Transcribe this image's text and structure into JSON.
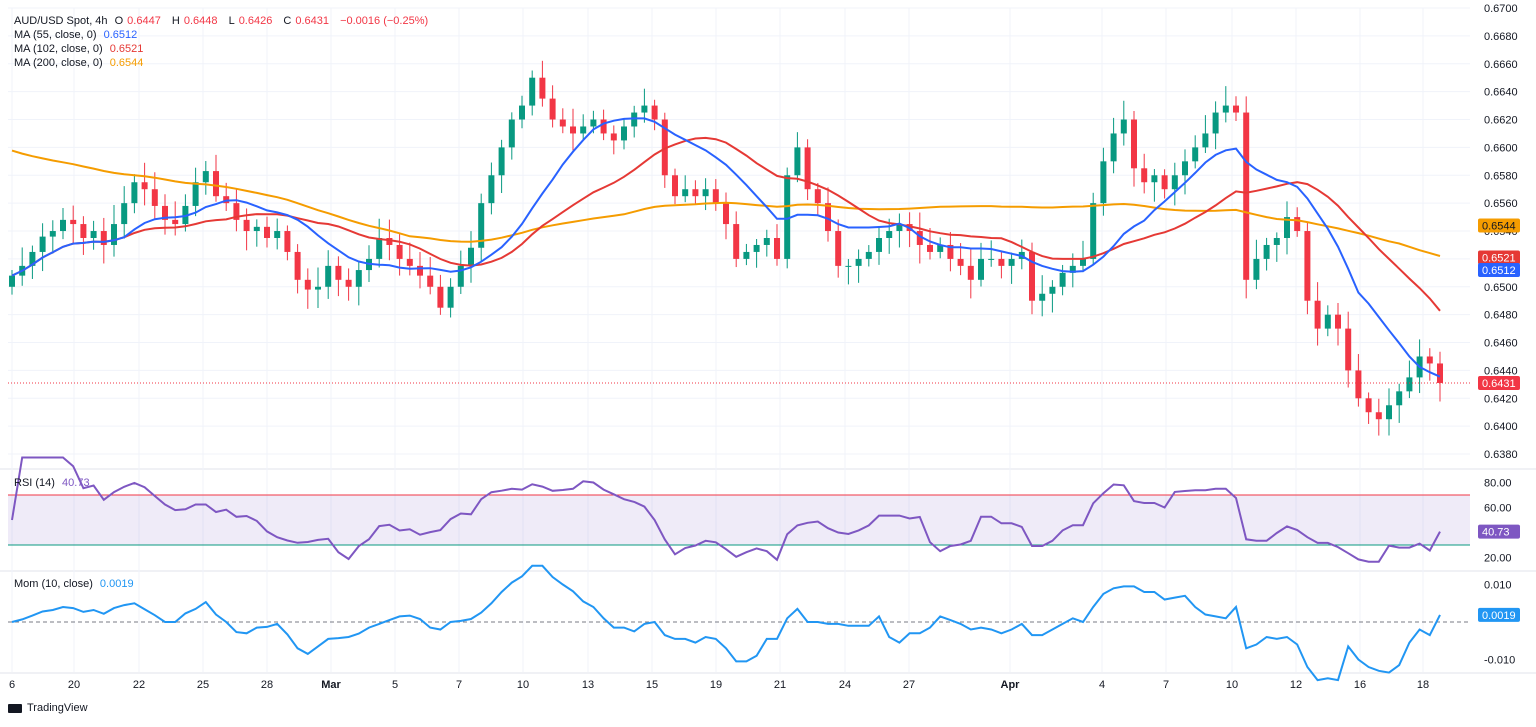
{
  "header": {
    "symbol": "AUD/USD Spot, 4h",
    "o_label": "O",
    "o": "0.6447",
    "h_label": "H",
    "h": "0.6448",
    "l_label": "L",
    "l": "0.6426",
    "c_label": "C",
    "c": "0.6431",
    "change": "−0.0016 (−0.25%)"
  },
  "indicators": {
    "ma55": {
      "label": "MA (55, close, 0)",
      "value": "0.6512",
      "color": "#2962ff"
    },
    "ma102": {
      "label": "MA (102, close, 0)",
      "value": "0.6521",
      "color": "#e53935"
    },
    "ma200": {
      "label": "MA (200, close, 0)",
      "value": "0.6544",
      "color": "#f59c00"
    }
  },
  "rsi": {
    "label": "RSI (14)",
    "value": "40.73",
    "color": "#7e57c2",
    "ticks": [
      "80.00",
      "60.00",
      "20.00"
    ],
    "upper": 70,
    "lower": 30
  },
  "mom": {
    "label": "Mom (10, close)",
    "value": "0.0019",
    "color": "#2196f3",
    "ticks": [
      "0.010",
      "-0.010"
    ]
  },
  "price_axis": {
    "ticks": [
      "0.6700",
      "0.6680",
      "0.6660",
      "0.6640",
      "0.6620",
      "0.6600",
      "0.6580",
      "0.6560",
      "0.6540",
      "0.6520",
      "0.6500",
      "0.6480",
      "0.6460",
      "0.6440",
      "0.6420",
      "0.6400",
      "0.6380"
    ]
  },
  "badges": {
    "ma200": "0.6544",
    "ma102": "0.6521",
    "ma55": "0.6512",
    "last": "0.6431"
  },
  "time_axis": [
    "6",
    "20",
    "22",
    "25",
    "28",
    "Mar",
    "5",
    "7",
    "10",
    "13",
    "15",
    "19",
    "21",
    "24",
    "27",
    "Apr",
    "4",
    "7",
    "10",
    "12",
    "16",
    "18"
  ],
  "brand": "TradingView",
  "colors": {
    "up": "#089981",
    "down": "#f23645",
    "grid": "#f0f3fa",
    "text": "#131722"
  },
  "chart_data": {
    "type": "candlestick",
    "title": "AUD/USD Spot, 4h",
    "ylim": [
      0.637,
      0.67
    ],
    "last": {
      "open": 0.6447,
      "high": 0.6448,
      "low": 0.6426,
      "close": 0.6431,
      "change": -0.0016,
      "change_pct": -0.25
    },
    "ma_last": {
      "ma55": 0.6512,
      "ma102": 0.6521,
      "ma200": 0.6544
    },
    "close_approx": [
      0.6508,
      0.6515,
      0.6525,
      0.6536,
      0.654,
      0.6548,
      0.6545,
      0.6535,
      0.654,
      0.653,
      0.6545,
      0.656,
      0.6575,
      0.657,
      0.6558,
      0.6548,
      0.6545,
      0.6558,
      0.6575,
      0.6583,
      0.6565,
      0.656,
      0.6548,
      0.654,
      0.6543,
      0.6535,
      0.654,
      0.6525,
      0.6505,
      0.6498,
      0.65,
      0.6515,
      0.6505,
      0.65,
      0.6512,
      0.652,
      0.6535,
      0.653,
      0.652,
      0.6515,
      0.6508,
      0.65,
      0.6485,
      0.65,
      0.6515,
      0.6528,
      0.656,
      0.658,
      0.66,
      0.662,
      0.663,
      0.665,
      0.6635,
      0.662,
      0.6615,
      0.661,
      0.6615,
      0.662,
      0.661,
      0.6605,
      0.6615,
      0.6625,
      0.663,
      0.662,
      0.658,
      0.6565,
      0.657,
      0.6565,
      0.657,
      0.656,
      0.6545,
      0.652,
      0.6525,
      0.653,
      0.6535,
      0.652,
      0.658,
      0.66,
      0.657,
      0.656,
      0.654,
      0.6515,
      0.6515,
      0.652,
      0.6525,
      0.6535,
      0.654,
      0.6545,
      0.654,
      0.653,
      0.6525,
      0.653,
      0.652,
      0.6515,
      0.6505,
      0.652,
      0.652,
      0.6515,
      0.652,
      0.6525,
      0.649,
      0.6495,
      0.65,
      0.651,
      0.6515,
      0.652,
      0.656,
      0.659,
      0.661,
      0.662,
      0.6585,
      0.6575,
      0.658,
      0.657,
      0.658,
      0.659,
      0.66,
      0.661,
      0.6625,
      0.663,
      0.6625,
      0.6505,
      0.652,
      0.653,
      0.6535,
      0.655,
      0.654,
      0.649,
      0.647,
      0.648,
      0.647,
      0.644,
      0.642,
      0.641,
      0.6405,
      0.6415,
      0.6425,
      0.6435,
      0.645,
      0.6445,
      0.6431
    ],
    "rsi_last": 40.73,
    "mom_last": 0.0019
  }
}
